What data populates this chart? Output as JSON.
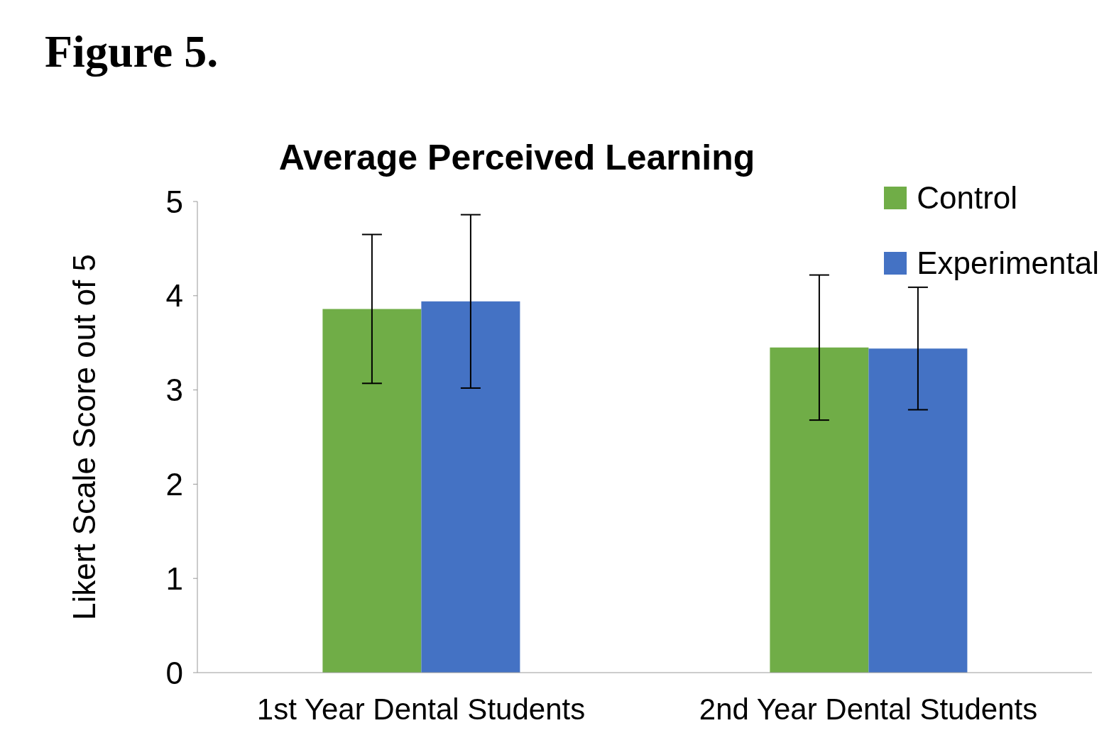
{
  "chart_data": {
    "type": "bar",
    "title": "Average Perceived Learning",
    "ylabel": "Likert Scale Score out of 5",
    "annotations": [
      "Figure 5."
    ],
    "categories": [
      "1st Year Dental Students",
      "2nd Year Dental Students"
    ],
    "series": [
      {
        "name": "Control",
        "color": "#70ad47",
        "values": [
          3.86,
          3.45
        ],
        "errors": [
          0.79,
          0.77
        ]
      },
      {
        "name": "Experimental",
        "color": "#4472c4",
        "values": [
          3.94,
          3.44
        ],
        "errors": [
          0.92,
          0.65
        ]
      }
    ],
    "ylim": [
      0,
      5
    ],
    "yticks": [
      0,
      1,
      2,
      3,
      4,
      5
    ],
    "grid": false,
    "legend": "top right"
  }
}
